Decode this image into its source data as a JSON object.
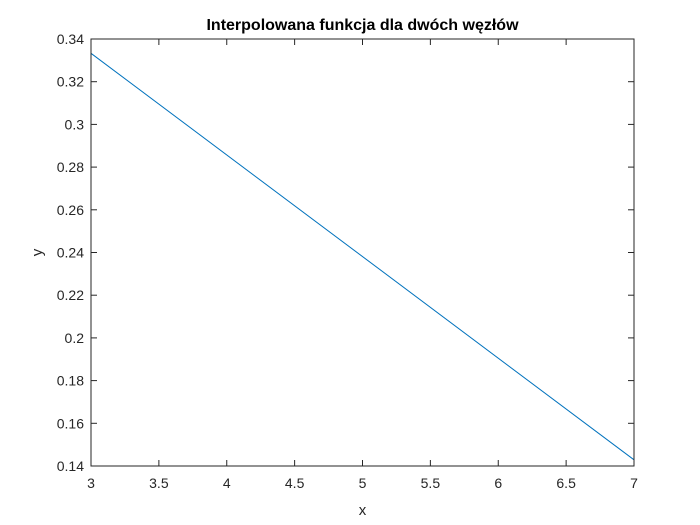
{
  "chart_data": {
    "type": "line",
    "title": "Interpolowana funkcja dla dwóch węzłów",
    "xlabel": "x",
    "ylabel": "y",
    "xlim": [
      3,
      7
    ],
    "ylim": [
      0.14,
      0.34
    ],
    "xticks": [
      3,
      3.5,
      4,
      4.5,
      5,
      5.5,
      6,
      6.5,
      7
    ],
    "xtick_labels": [
      "3",
      "3.5",
      "4",
      "4.5",
      "5",
      "5.5",
      "6",
      "6.5",
      "7"
    ],
    "yticks": [
      0.14,
      0.16,
      0.18,
      0.2,
      0.22,
      0.24,
      0.26,
      0.28,
      0.3,
      0.32,
      0.34
    ],
    "ytick_labels": [
      "0.14",
      "0.16",
      "0.18",
      "0.2",
      "0.22",
      "0.24",
      "0.26",
      "0.28",
      "0.3",
      "0.32",
      "0.34"
    ],
    "grid": false,
    "box": true,
    "series": [
      {
        "color": "#0072bd",
        "x": [
          3,
          7
        ],
        "y": [
          0.3333,
          0.1429
        ]
      }
    ]
  }
}
